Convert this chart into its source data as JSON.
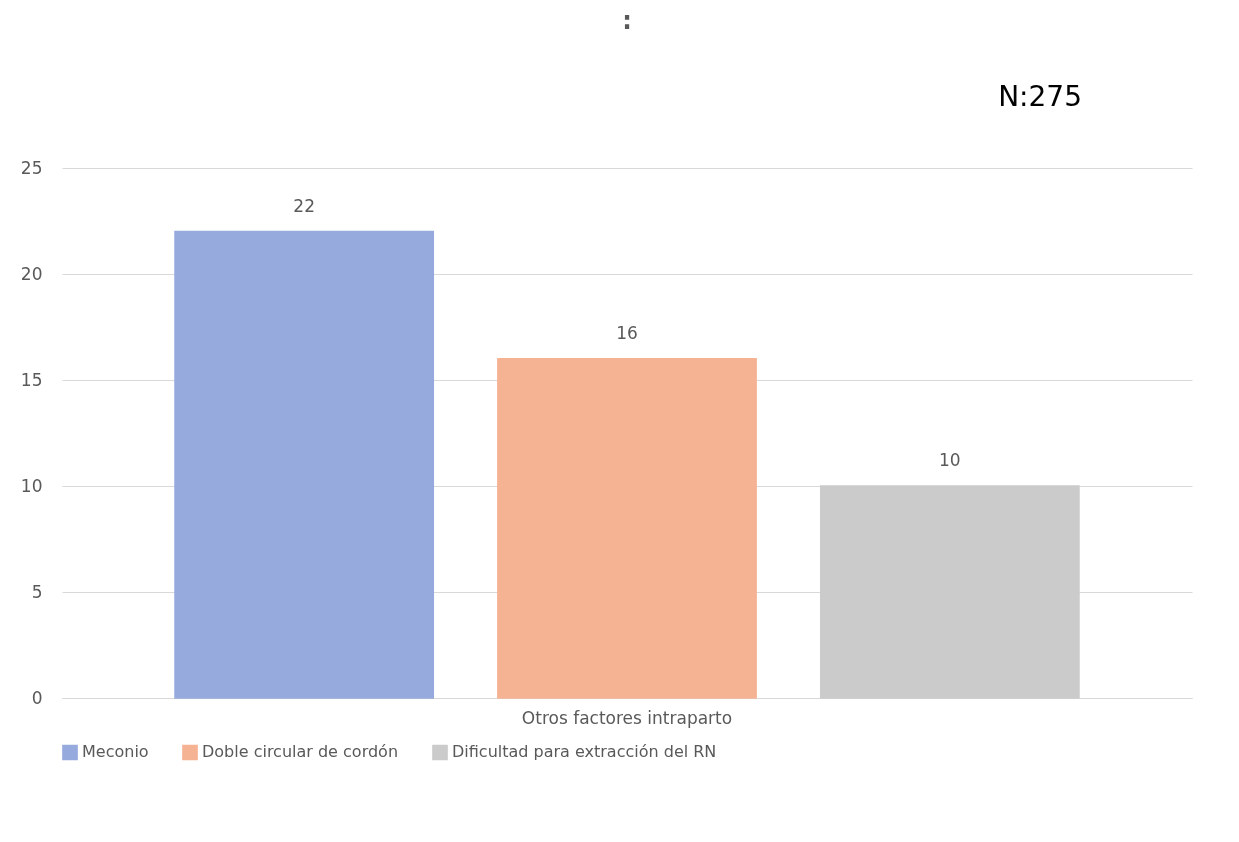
{
  "chart_data": {
    "type": "bar",
    "title": ":",
    "categories": [
      "Otros factores intraparto"
    ],
    "series": [
      {
        "name": "Meconio",
        "color": "#97aadd",
        "values": [
          22
        ]
      },
      {
        "name": "Doble circular de cordón",
        "color": "#f5b394",
        "values": [
          16
        ]
      },
      {
        "name": "Dificultad para extracción del RN",
        "color": "#cbcbcb",
        "values": [
          10
        ]
      }
    ],
    "ylim": [
      0,
      25
    ],
    "yticks": [
      0,
      5,
      10,
      15,
      20,
      25
    ],
    "grid": "y",
    "legend": "bottom",
    "data_labels": true,
    "annotations": [
      "N:275"
    ]
  }
}
